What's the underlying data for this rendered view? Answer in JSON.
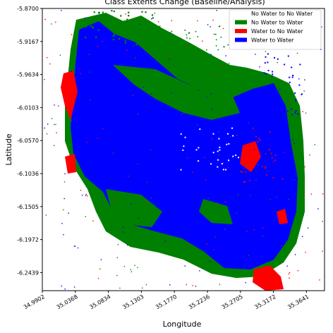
{
  "chart_data": {
    "type": "heatmap",
    "title": "Class Extents Change (Baseline/Analysis)",
    "xlabel": "Longitude",
    "ylabel": "Latitude",
    "x_ticks": [
      "34.9902",
      "35.0368",
      "35.0834",
      "35.1303",
      "35.1770",
      "35.2236",
      "35.2705",
      "35.3172",
      "35.3641"
    ],
    "y_ticks": [
      "-5.8700",
      "-5.9167",
      "-5.9634",
      "-6.0103",
      "-6.0570",
      "-6.1036",
      "-6.1505",
      "-6.1972",
      "-6.2439"
    ],
    "xlim": [
      34.9902,
      35.3641
    ],
    "ylim": [
      -6.2439,
      -5.87
    ],
    "grid": false,
    "legend_position": "top-right",
    "classes": [
      {
        "name": "No Water to No Water",
        "color": "#ffffff"
      },
      {
        "name": "No Water to Water",
        "color": "#008000"
      },
      {
        "name": "Water to No Water",
        "color": "#ff0000"
      },
      {
        "name": "Water to Water",
        "color": "#0000ff"
      }
    ]
  }
}
